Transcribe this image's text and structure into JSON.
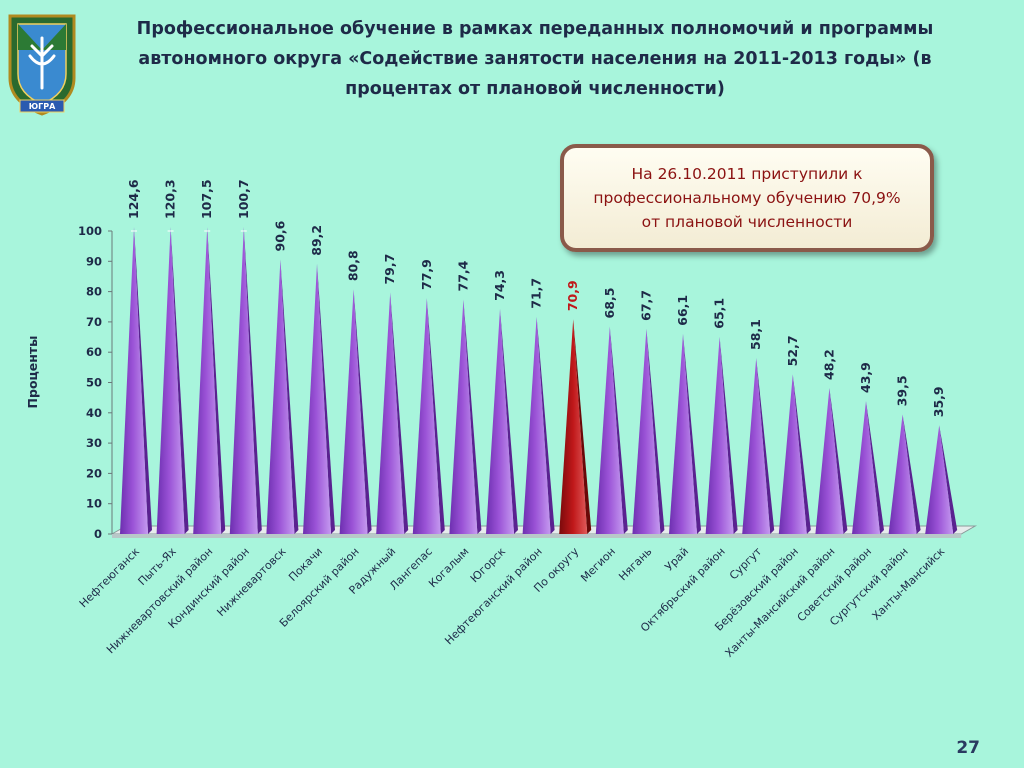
{
  "slide": {
    "title": "Профессиональное обучение в рамках переданных полномочий и программы автономного округа «Содействие занятости населения на 2011-2013 годы» (в процентах от плановой численности)",
    "page_number": "27"
  },
  "emblem": {
    "label": "ЮГРА",
    "icon": "coat-of-arms-icon"
  },
  "callout": {
    "line1": "На 26.10.2011 приступили к",
    "line2": "профессиональному обучению  70,9%",
    "line3": "от плановой численности"
  },
  "colors": {
    "background": "#a8f5dc",
    "bar": "#9a52d6",
    "bar_highlight": "#c0181a",
    "value_text": "#1e2a48",
    "value_highlight_text": "#c0181a"
  },
  "chart_data": {
    "type": "bar",
    "ylabel": "Проценты",
    "ylim": [
      0,
      100
    ],
    "yticks": [
      0,
      10,
      20,
      30,
      40,
      50,
      60,
      70,
      80,
      90,
      100
    ],
    "highlight_category": "По округу",
    "categories": [
      "Нефтеюганск",
      "Пыть-Ях",
      "Нижневартовский район",
      "Кондинский район",
      "Нижневартовск",
      "Покачи",
      "Белоярский район",
      "Радужный",
      "Лангепас",
      "Когалым",
      "Югорск",
      "Нефтеюганский район",
      "По округу",
      "Мегион",
      "Нягань",
      "Урай",
      "Октябрьский район",
      "Сургут",
      "Берёзовский район",
      "Ханты-Мансийский район",
      "Советский район",
      "Сургутский район",
      "Ханты-Мансийск"
    ],
    "values": [
      124.6,
      120.3,
      107.5,
      100.7,
      90.6,
      89.2,
      80.8,
      79.7,
      77.9,
      77.4,
      74.3,
      71.7,
      70.9,
      68.5,
      67.7,
      66.1,
      65.1,
      58.1,
      52.7,
      48.2,
      43.9,
      39.5,
      35.9
    ],
    "value_labels": [
      "124,6",
      "120,3",
      "107,5",
      "100,7",
      "90,6",
      "89,2",
      "80,8",
      "79,7",
      "77,9",
      "77,4",
      "74,3",
      "71,7",
      "70,9",
      "68,5",
      "67,7",
      "66,1",
      "65,1",
      "58,1",
      "52,7",
      "48,2",
      "43,9",
      "39,5",
      "35,9"
    ]
  }
}
